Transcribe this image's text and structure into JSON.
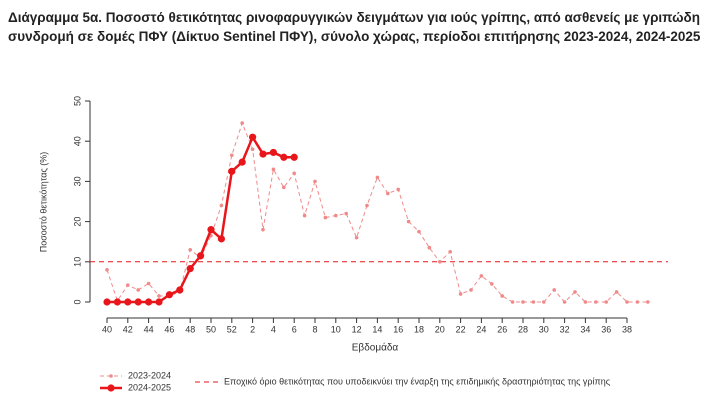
{
  "chart_data": {
    "type": "line",
    "title": "Διάγραμμα 5α. Ποσοστό θετικότητας ρινοφαρυγγικών δειγμάτων για ιούς γρίπης, από ασθενείς με γριπώδη συνδρομή σε δομές ΠΦΥ (Δίκτυο Sentinel ΠΦΥ), σύνολο χώρας, περίοδοι επιτήρησης 2023-2024, 2024-2025",
    "x_label": "Εβδομάδα",
    "y_label": "Ποσοστό θετικότητας (%)",
    "categories": [
      40,
      null,
      42,
      null,
      44,
      null,
      46,
      null,
      48,
      null,
      50,
      null,
      52,
      null,
      2,
      null,
      4,
      null,
      6,
      null,
      8,
      null,
      10,
      null,
      12,
      null,
      14,
      null,
      16,
      null,
      18,
      null,
      20,
      null,
      22,
      null,
      24,
      null,
      26,
      null,
      28,
      null,
      30,
      null,
      32,
      null,
      34,
      null,
      36,
      null,
      38,
      null,
      null
    ],
    "series": [
      {
        "name": "2023-2024",
        "color": "#f08a8a",
        "values": [
          8,
          0.3,
          4.2,
          3,
          4.6,
          1.5,
          1.5,
          2.5,
          13,
          11,
          16.5,
          24,
          36.5,
          44.5,
          38,
          18,
          33,
          28.5,
          32,
          21.5,
          30,
          21,
          21.5,
          22,
          16,
          24,
          31,
          27,
          28,
          20,
          17.5,
          13.5,
          10,
          12.5,
          2,
          3,
          6.5,
          4.5,
          1.5,
          0,
          0,
          0,
          0,
          3,
          0,
          2.5,
          0,
          0,
          0,
          2.5,
          0,
          0,
          0
        ]
      },
      {
        "name": "2024-2025",
        "color": "#e8161b",
        "values": [
          0,
          0,
          0,
          0,
          0,
          0,
          1.8,
          3,
          8.3,
          11.5,
          18,
          15.7,
          32.5,
          34.8,
          41,
          36.8,
          37.2,
          36,
          36,
          null,
          null,
          null,
          null,
          null,
          null,
          null,
          null,
          null,
          null,
          null,
          null,
          null,
          null,
          null,
          null,
          null,
          null,
          null,
          null,
          null,
          null,
          null,
          null,
          null,
          null,
          null,
          null,
          null,
          null,
          null,
          null,
          null,
          null
        ]
      }
    ],
    "threshold": {
      "value": 10,
      "label": "Εποχικό όριο θετικότητας που υποδεικνύει την έναρξη της επιδημικής δραστηριότητας της γρίπης",
      "color": "#e8161b"
    },
    "ylim": [
      0,
      50
    ],
    "yticks": [
      0,
      10,
      20,
      30,
      40,
      50
    ]
  }
}
